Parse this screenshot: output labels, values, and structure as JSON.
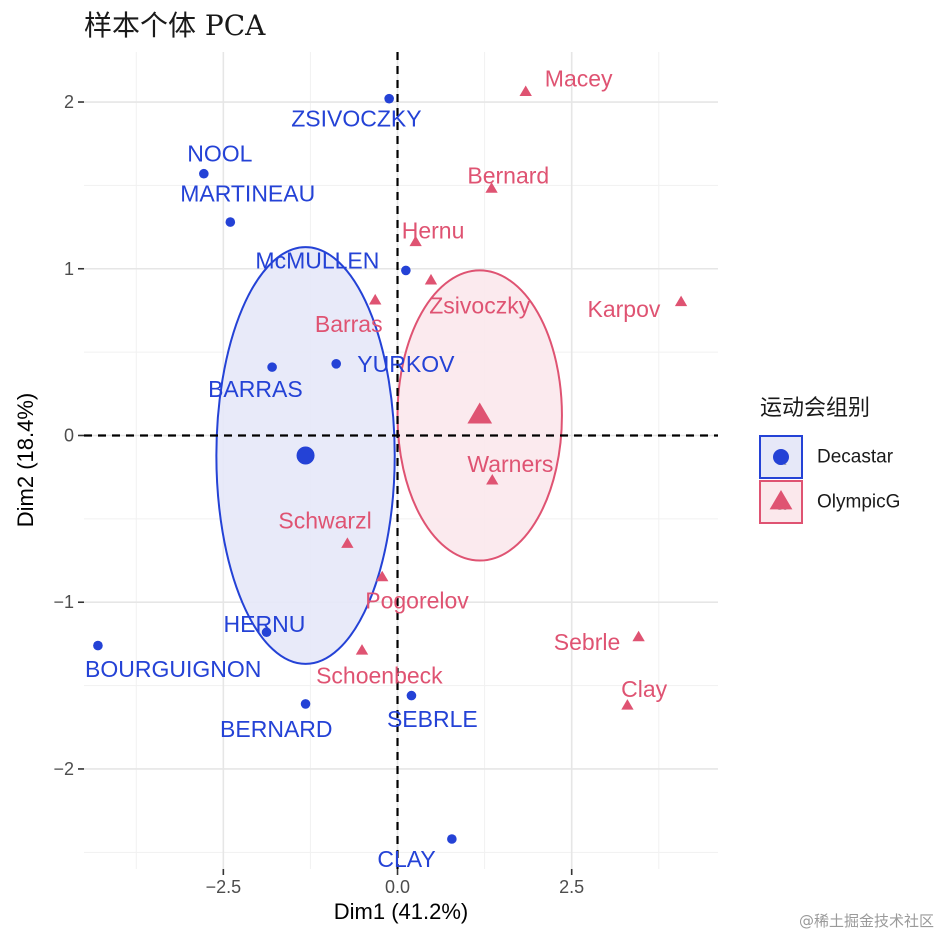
{
  "chart_data": {
    "type": "scatter",
    "title": "样本个体 PCA",
    "xlabel": "Dim1 (41.2%)",
    "ylabel": "Dim2 (18.4%)",
    "xlim": [
      -4.5,
      4.6
    ],
    "ylim": [
      -2.6,
      2.3
    ],
    "x_ticks": [
      -2.5,
      0.0,
      2.5
    ],
    "x_tick_labels": [
      "−2.5",
      "0.0",
      "2.5"
    ],
    "y_ticks": [
      -2,
      -1,
      0,
      1,
      2
    ],
    "y_tick_labels": [
      "−2",
      "−1",
      "0",
      "1",
      "2"
    ],
    "grid": true,
    "reference_lines": {
      "x": 0,
      "y": 0,
      "style": "dashed"
    },
    "legend": {
      "title": "运动会组别",
      "position": "right",
      "entries": [
        {
          "label": "Decastar",
          "color": "#2442d6",
          "shape": "circle",
          "letter": "a"
        },
        {
          "label": "OlympicG",
          "color": "#df5372",
          "shape": "triangle",
          "letter": "a"
        }
      ]
    },
    "series": [
      {
        "name": "Decastar",
        "color": "#2442d6",
        "fill": "#e6e8f8",
        "shape": "circle",
        "centroid": [
          -1.32,
          -0.12
        ],
        "ellipse": {
          "center": [
            -1.32,
            -0.12
          ],
          "rx": 1.28,
          "ry": 1.25
        },
        "points": [
          {
            "label": "ZSIVOCZKY",
            "x": -0.12,
            "y": 2.02,
            "ldx": -0.47,
            "ldy": -0.12
          },
          {
            "label": "NOOL",
            "x": -2.78,
            "y": 1.57,
            "ldx": 0.23,
            "ldy": 0.12
          },
          {
            "label": "MARTINEAU",
            "x": -2.4,
            "y": 1.28,
            "ldx": 0.25,
            "ldy": 0.17
          },
          {
            "label": "McMULLEN",
            "x": 0.12,
            "y": 0.99,
            "ldx": -1.27,
            "ldy": 0.06
          },
          {
            "label": "YURKOV",
            "x": -0.88,
            "y": 0.43,
            "ldx": 1.0,
            "ldy": 0.0
          },
          {
            "label": "BARRAS",
            "x": -1.8,
            "y": 0.41,
            "ldx": -0.24,
            "ldy": -0.13
          },
          {
            "label": "HERNU",
            "x": -1.88,
            "y": -1.18,
            "ldx": -0.03,
            "ldy": 0.05
          },
          {
            "label": "BOURGUIGNON",
            "x": -4.3,
            "y": -1.26,
            "ldx": 1.08,
            "ldy": -0.14
          },
          {
            "label": "BERNARD",
            "x": -1.32,
            "y": -1.61,
            "ldx": -0.42,
            "ldy": -0.15
          },
          {
            "label": "SEBRLE",
            "x": 0.2,
            "y": -1.56,
            "ldx": 0.3,
            "ldy": -0.14
          },
          {
            "label": "CLAY",
            "x": 0.78,
            "y": -2.42,
            "ldx": -0.65,
            "ldy": -0.12
          }
        ]
      },
      {
        "name": "OlympicG",
        "color": "#df5372",
        "fill": "#fbe8ec",
        "shape": "triangle",
        "centroid": [
          1.18,
          0.12
        ],
        "ellipse": {
          "center": [
            1.18,
            0.12
          ],
          "rx": 1.18,
          "ry": 0.87
        },
        "points": [
          {
            "label": "Macey",
            "x": 1.84,
            "y": 2.06,
            "ldx": 0.76,
            "ldy": 0.08
          },
          {
            "label": "Bernard",
            "x": 1.35,
            "y": 1.48,
            "ldx": 0.24,
            "ldy": 0.08
          },
          {
            "label": "Hernu",
            "x": 0.26,
            "y": 1.16,
            "ldx": 0.25,
            "ldy": 0.07
          },
          {
            "label": "Zsivoczky",
            "x": 0.48,
            "y": 0.93,
            "ldx": 0.7,
            "ldy": -0.15
          },
          {
            "label": "Barras",
            "x": -0.32,
            "y": 0.81,
            "ldx": -0.38,
            "ldy": -0.14
          },
          {
            "label": "Karpov",
            "x": 4.07,
            "y": 0.8,
            "ldx": -0.82,
            "ldy": -0.04
          },
          {
            "label": "Warners",
            "x": 1.36,
            "y": -0.27,
            "ldx": 0.26,
            "ldy": 0.1
          },
          {
            "label": "Schwarzl",
            "x": -0.72,
            "y": -0.65,
            "ldx": -0.32,
            "ldy": 0.14
          },
          {
            "label": "Pogorelov",
            "x": -0.22,
            "y": -0.85,
            "ldx": 0.5,
            "ldy": -0.14
          },
          {
            "label": "Sebrle",
            "x": 3.46,
            "y": -1.21,
            "ldx": -0.74,
            "ldy": -0.03
          },
          {
            "label": "Schoenbeck",
            "x": -0.51,
            "y": -1.29,
            "ldx": 0.25,
            "ldy": -0.15
          },
          {
            "label": "Clay",
            "x": 3.3,
            "y": -1.62,
            "ldx": 0.24,
            "ldy": 0.1
          }
        ]
      }
    ]
  },
  "watermark": "@稀土掘金技术社区"
}
